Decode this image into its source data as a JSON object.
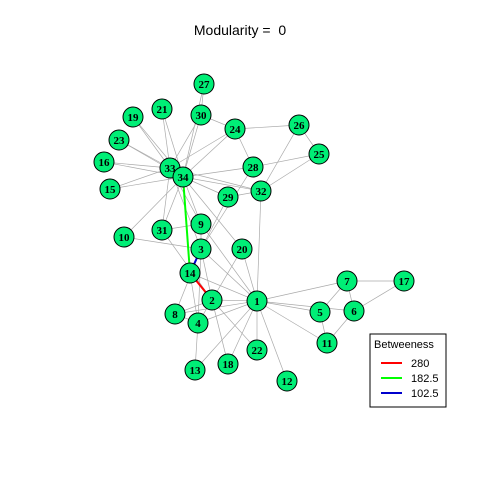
{
  "title": "Modularity =  0",
  "nodes": [
    "1",
    "2",
    "3",
    "4",
    "5",
    "6",
    "7",
    "8",
    "9",
    "10",
    "11",
    "12",
    "13",
    "14",
    "15",
    "16",
    "17",
    "18",
    "19",
    "20",
    "21",
    "22",
    "23",
    "24",
    "25",
    "26",
    "27",
    "28",
    "29",
    "30",
    "31",
    "32",
    "33",
    "34"
  ],
  "edges": [
    [
      "1",
      "2"
    ],
    [
      "1",
      "3"
    ],
    [
      "1",
      "4"
    ],
    [
      "1",
      "5"
    ],
    [
      "1",
      "6"
    ],
    [
      "1",
      "7"
    ],
    [
      "1",
      "8"
    ],
    [
      "1",
      "9"
    ],
    [
      "1",
      "11"
    ],
    [
      "1",
      "12"
    ],
    [
      "1",
      "13"
    ],
    [
      "1",
      "14"
    ],
    [
      "1",
      "18"
    ],
    [
      "1",
      "20"
    ],
    [
      "1",
      "22"
    ],
    [
      "1",
      "32"
    ],
    [
      "2",
      "3"
    ],
    [
      "2",
      "4"
    ],
    [
      "2",
      "8"
    ],
    [
      "2",
      "14"
    ],
    [
      "2",
      "18"
    ],
    [
      "2",
      "20"
    ],
    [
      "2",
      "22"
    ],
    [
      "2",
      "31"
    ],
    [
      "3",
      "4"
    ],
    [
      "3",
      "8"
    ],
    [
      "3",
      "9"
    ],
    [
      "3",
      "10"
    ],
    [
      "3",
      "14"
    ],
    [
      "3",
      "28"
    ],
    [
      "3",
      "29"
    ],
    [
      "3",
      "33"
    ],
    [
      "4",
      "8"
    ],
    [
      "4",
      "13"
    ],
    [
      "4",
      "14"
    ],
    [
      "5",
      "7"
    ],
    [
      "5",
      "11"
    ],
    [
      "6",
      "7"
    ],
    [
      "6",
      "11"
    ],
    [
      "6",
      "17"
    ],
    [
      "7",
      "17"
    ],
    [
      "9",
      "31"
    ],
    [
      "9",
      "33"
    ],
    [
      "9",
      "34"
    ],
    [
      "10",
      "34"
    ],
    [
      "14",
      "34"
    ],
    [
      "15",
      "33"
    ],
    [
      "15",
      "34"
    ],
    [
      "16",
      "33"
    ],
    [
      "16",
      "34"
    ],
    [
      "19",
      "33"
    ],
    [
      "19",
      "34"
    ],
    [
      "20",
      "34"
    ],
    [
      "21",
      "33"
    ],
    [
      "21",
      "34"
    ],
    [
      "23",
      "33"
    ],
    [
      "23",
      "34"
    ],
    [
      "24",
      "26"
    ],
    [
      "24",
      "28"
    ],
    [
      "24",
      "30"
    ],
    [
      "24",
      "33"
    ],
    [
      "24",
      "34"
    ],
    [
      "25",
      "26"
    ],
    [
      "25",
      "28"
    ],
    [
      "25",
      "32"
    ],
    [
      "26",
      "32"
    ],
    [
      "27",
      "30"
    ],
    [
      "27",
      "34"
    ],
    [
      "28",
      "34"
    ],
    [
      "29",
      "32"
    ],
    [
      "29",
      "34"
    ],
    [
      "30",
      "33"
    ],
    [
      "30",
      "34"
    ],
    [
      "31",
      "33"
    ],
    [
      "31",
      "34"
    ],
    [
      "32",
      "33"
    ],
    [
      "32",
      "34"
    ],
    [
      "33",
      "34"
    ]
  ],
  "highlighted_edges": [
    {
      "from": "2",
      "to": "14",
      "betweenness": "280",
      "color": "#ff0000"
    },
    {
      "from": "14",
      "to": "34",
      "betweenness": "182.5",
      "color": "#00ff00"
    },
    {
      "from": "3",
      "to": "14",
      "betweenness": "102.5",
      "color": "#0000cd"
    }
  ],
  "node_fill": "#00ee76",
  "edge_color": "#aaaaaa",
  "legend": {
    "title": "Betweeness",
    "items": [
      {
        "label": "280",
        "color": "#ff0000"
      },
      {
        "label": "182.5",
        "color": "#00ff00"
      },
      {
        "label": "102.5",
        "color": "#0000cd"
      }
    ]
  }
}
